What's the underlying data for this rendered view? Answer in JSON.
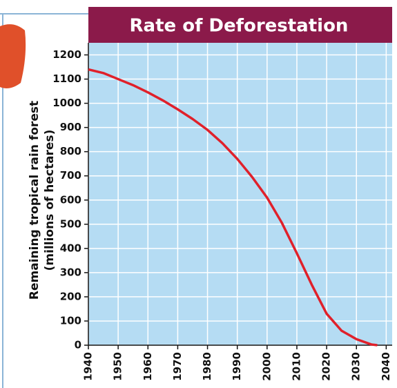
{
  "chart_data": {
    "type": "line",
    "title": "Rate of Deforestation",
    "ylabel": [
      "Remaining tropical rain forest",
      "(millions of hectares)"
    ],
    "x": [
      1940,
      1945,
      1950,
      1955,
      1960,
      1965,
      1970,
      1975,
      1980,
      1985,
      1990,
      1995,
      2000,
      2005,
      2010,
      2015,
      2020,
      2025,
      2030,
      2035,
      2037
    ],
    "series": [
      {
        "color": "#e0202a",
        "values": [
          1140,
          1125,
          1100,
          1075,
          1045,
          1012,
          975,
          935,
          890,
          835,
          770,
          695,
          610,
          505,
          380,
          250,
          130,
          60,
          25,
          3,
          0
        ]
      }
    ],
    "xlim": [
      1940,
      2042
    ],
    "xticks": [
      1940,
      1950,
      1960,
      1970,
      1980,
      1990,
      2000,
      2010,
      2020,
      2030,
      2040
    ],
    "ylim": [
      0,
      1250
    ],
    "yticks": [
      0,
      100,
      200,
      300,
      400,
      500,
      600,
      700,
      800,
      900,
      1000,
      1100,
      1200
    ],
    "grid": true
  }
}
